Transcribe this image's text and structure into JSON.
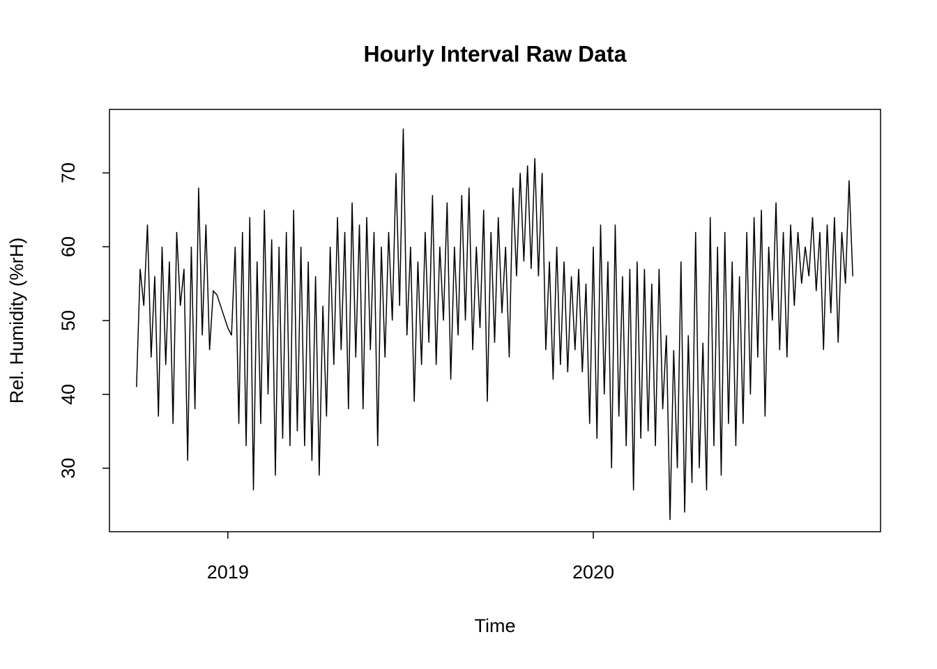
{
  "chart_data": {
    "type": "line",
    "title": "Hourly Interval Raw Data",
    "x_label": "Time",
    "y_label": "Rel. Humidity (%rH)",
    "color": "#000000",
    "xlim": [
      2018.676,
      2020.786
    ],
    "xticks": [
      2019,
      2020
    ],
    "ylim": [
      21.4,
      78.6
    ],
    "yticks": [
      30,
      40,
      50,
      60,
      70
    ],
    "x": [
      2018.75,
      2018.76,
      2018.77,
      2018.78,
      2018.79,
      2018.8,
      2018.81,
      2018.82,
      2018.83,
      2018.84,
      2018.85,
      2018.86,
      2018.87,
      2018.88,
      2018.89,
      2018.9,
      2018.91,
      2018.92,
      2018.93,
      2018.94,
      2018.95,
      2018.96,
      2018.97,
      2018.98,
      2018.99,
      2019.0,
      2019.01,
      2019.02,
      2019.03,
      2019.04,
      2019.05,
      2019.06,
      2019.07,
      2019.08,
      2019.09,
      2019.1,
      2019.11,
      2019.12,
      2019.13,
      2019.14,
      2019.15,
      2019.16,
      2019.17,
      2019.18,
      2019.19,
      2019.2,
      2019.21,
      2019.22,
      2019.23,
      2019.24,
      2019.25,
      2019.26,
      2019.27,
      2019.28,
      2019.29,
      2019.3,
      2019.31,
      2019.32,
      2019.33,
      2019.34,
      2019.35,
      2019.36,
      2019.37,
      2019.38,
      2019.39,
      2019.4,
      2019.41,
      2019.42,
      2019.43,
      2019.44,
      2019.45,
      2019.46,
      2019.47,
      2019.48,
      2019.49,
      2019.5,
      2019.51,
      2019.52,
      2019.53,
      2019.54,
      2019.55,
      2019.56,
      2019.57,
      2019.58,
      2019.59,
      2019.6,
      2019.61,
      2019.62,
      2019.63,
      2019.64,
      2019.65,
      2019.66,
      2019.67,
      2019.68,
      2019.69,
      2019.7,
      2019.71,
      2019.72,
      2019.73,
      2019.74,
      2019.75,
      2019.76,
      2019.77,
      2019.78,
      2019.79,
      2019.8,
      2019.81,
      2019.82,
      2019.83,
      2019.84,
      2019.85,
      2019.86,
      2019.87,
      2019.88,
      2019.89,
      2019.9,
      2019.91,
      2019.92,
      2019.93,
      2019.94,
      2019.95,
      2019.96,
      2019.97,
      2019.98,
      2019.99,
      2020.0,
      2020.01,
      2020.02,
      2020.03,
      2020.04,
      2020.05,
      2020.06,
      2020.07,
      2020.08,
      2020.09,
      2020.1,
      2020.11,
      2020.12,
      2020.13,
      2020.14,
      2020.15,
      2020.16,
      2020.17,
      2020.18,
      2020.19,
      2020.2,
      2020.21,
      2020.22,
      2020.23,
      2020.24,
      2020.25,
      2020.26,
      2020.27,
      2020.28,
      2020.29,
      2020.3,
      2020.31,
      2020.32,
      2020.33,
      2020.34,
      2020.35,
      2020.36,
      2020.37,
      2020.38,
      2020.39,
      2020.4,
      2020.41,
      2020.42,
      2020.43,
      2020.44,
      2020.45,
      2020.46,
      2020.47,
      2020.48,
      2020.49,
      2020.5,
      2020.51,
      2020.52,
      2020.53,
      2020.54,
      2020.55,
      2020.56,
      2020.57,
      2020.58,
      2020.59,
      2020.6,
      2020.61,
      2020.62,
      2020.63,
      2020.64,
      2020.65,
      2020.66,
      2020.67,
      2020.68,
      2020.69,
      2020.7,
      2020.71
    ],
    "values": [
      41,
      57,
      52,
      63,
      45,
      56,
      37,
      60,
      44,
      58,
      36,
      62,
      52,
      57,
      31,
      60,
      38,
      68,
      48,
      63,
      46,
      54,
      53.5,
      52,
      50.5,
      49,
      48,
      60,
      36,
      62,
      33,
      64,
      27,
      58,
      36,
      65,
      40,
      61,
      29,
      60,
      34,
      62,
      33,
      65,
      35,
      60,
      33,
      58,
      31,
      56,
      29,
      52,
      37,
      60,
      44,
      64,
      46,
      62,
      38,
      66,
      45,
      63,
      38,
      64,
      46,
      62,
      33,
      60,
      45,
      62,
      50,
      70,
      52,
      76,
      48,
      60,
      39,
      58,
      44,
      62,
      47,
      67,
      44,
      60,
      50,
      66,
      42,
      60,
      48,
      67,
      50,
      68,
      46,
      60,
      49,
      65,
      39,
      62,
      47,
      64,
      51,
      60,
      45,
      68,
      56,
      70,
      58,
      71,
      57,
      72,
      56,
      70,
      46,
      58,
      42,
      60,
      44,
      58,
      43,
      56,
      46,
      57,
      43,
      55,
      36,
      60,
      34,
      63,
      40,
      58,
      30,
      63,
      37,
      56,
      33,
      57,
      27,
      58,
      34,
      57,
      35,
      55,
      33,
      57,
      38,
      48,
      23,
      46,
      30,
      58,
      24,
      48,
      28,
      62,
      30,
      47,
      27,
      64,
      33,
      60,
      29,
      62,
      36,
      58,
      33,
      56,
      36,
      62,
      40,
      64,
      45,
      65,
      37,
      60,
      50,
      66,
      46,
      62,
      45,
      63,
      52,
      62,
      55,
      60,
      56,
      64,
      54,
      62,
      46,
      63,
      51,
      64,
      47,
      62,
      55,
      69,
      56
    ]
  }
}
